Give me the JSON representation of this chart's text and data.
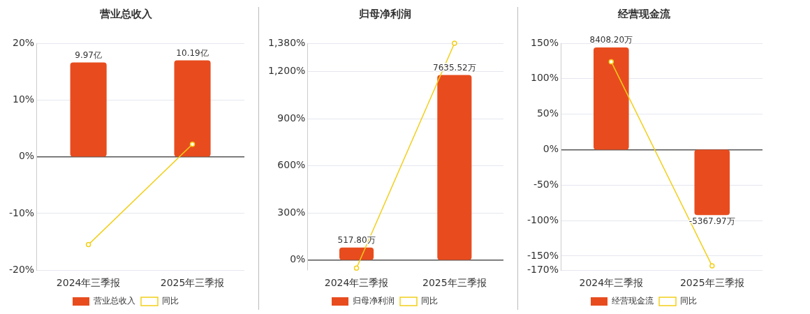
{
  "chart_data": [
    {
      "type": "bar",
      "title": "营业总收入",
      "categories": [
        "2024年三季报",
        "2025年三季报"
      ],
      "ylim": [
        -20,
        20
      ],
      "yticks": [
        {
          "value": -20,
          "label": "-20%"
        },
        {
          "value": -10,
          "label": "-10%"
        },
        {
          "value": 0,
          "label": "0%"
        },
        {
          "value": 10,
          "label": "10%"
        },
        {
          "value": 20,
          "label": "20%"
        }
      ],
      "y2lim": [
        -12,
        12
      ],
      "grid": "y",
      "legend": "bottom",
      "marker": "circle",
      "series": [
        {
          "name": "营业总收入",
          "axis": "y2",
          "color": "#e84c1e",
          "values": [
            9.97,
            10.19
          ],
          "value_labels": [
            "9.97亿",
            "10.19亿"
          ]
        },
        {
          "name": "同比",
          "type": "line",
          "color": "#f2cf1a",
          "values": [
            -15.5,
            2.2
          ]
        }
      ]
    },
    {
      "type": "bar",
      "title": "归母净利润",
      "categories": [
        "2024年三季报",
        "2025年三季报"
      ],
      "ylim": [
        -65,
        1380
      ],
      "yticks": [
        {
          "value": 0,
          "label": "0%"
        },
        {
          "value": 300,
          "label": "300%"
        },
        {
          "value": 600,
          "label": "600%"
        },
        {
          "value": 900,
          "label": "900%"
        },
        {
          "value": 1200,
          "label": "1,200%"
        },
        {
          "value": 1380,
          "label": "1,380%"
        }
      ],
      "y2lim": [
        -420,
        8950
      ],
      "grid": "y",
      "legend": "bottom",
      "marker": "circle",
      "series": [
        {
          "name": "归母净利润",
          "axis": "y2",
          "color": "#e84c1e",
          "values": [
            517.8,
            7635.52
          ],
          "value_labels": [
            "517.80万",
            "7635.52万"
          ]
        },
        {
          "name": "同比",
          "type": "line",
          "color": "#f2cf1a",
          "values": [
            -52,
            1380
          ]
        }
      ]
    },
    {
      "type": "bar",
      "title": "经营现金流",
      "categories": [
        "2024年三季报",
        "2025年三季报"
      ],
      "ylim": [
        -170,
        150
      ],
      "yticks": [
        {
          "value": -170,
          "label": "-170%"
        },
        {
          "value": -150,
          "label": "-150%"
        },
        {
          "value": -100,
          "label": "-100%"
        },
        {
          "value": -50,
          "label": "-50%"
        },
        {
          "value": 0,
          "label": "0%"
        },
        {
          "value": 50,
          "label": "50%"
        },
        {
          "value": 100,
          "label": "100%"
        },
        {
          "value": 150,
          "label": "150%"
        }
      ],
      "y2lim": [
        -9900,
        8750
      ],
      "grid": "y",
      "legend": "bottom",
      "marker": "circle",
      "series": [
        {
          "name": "经营现金流",
          "axis": "y2",
          "color": "#e84c1e",
          "values": [
            8408.2,
            -5367.97
          ],
          "value_labels": [
            "8408.20万",
            "-5367.97万"
          ]
        },
        {
          "name": "同比",
          "type": "line",
          "color": "#f2cf1a",
          "values": [
            124,
            -164
          ]
        }
      ]
    }
  ]
}
